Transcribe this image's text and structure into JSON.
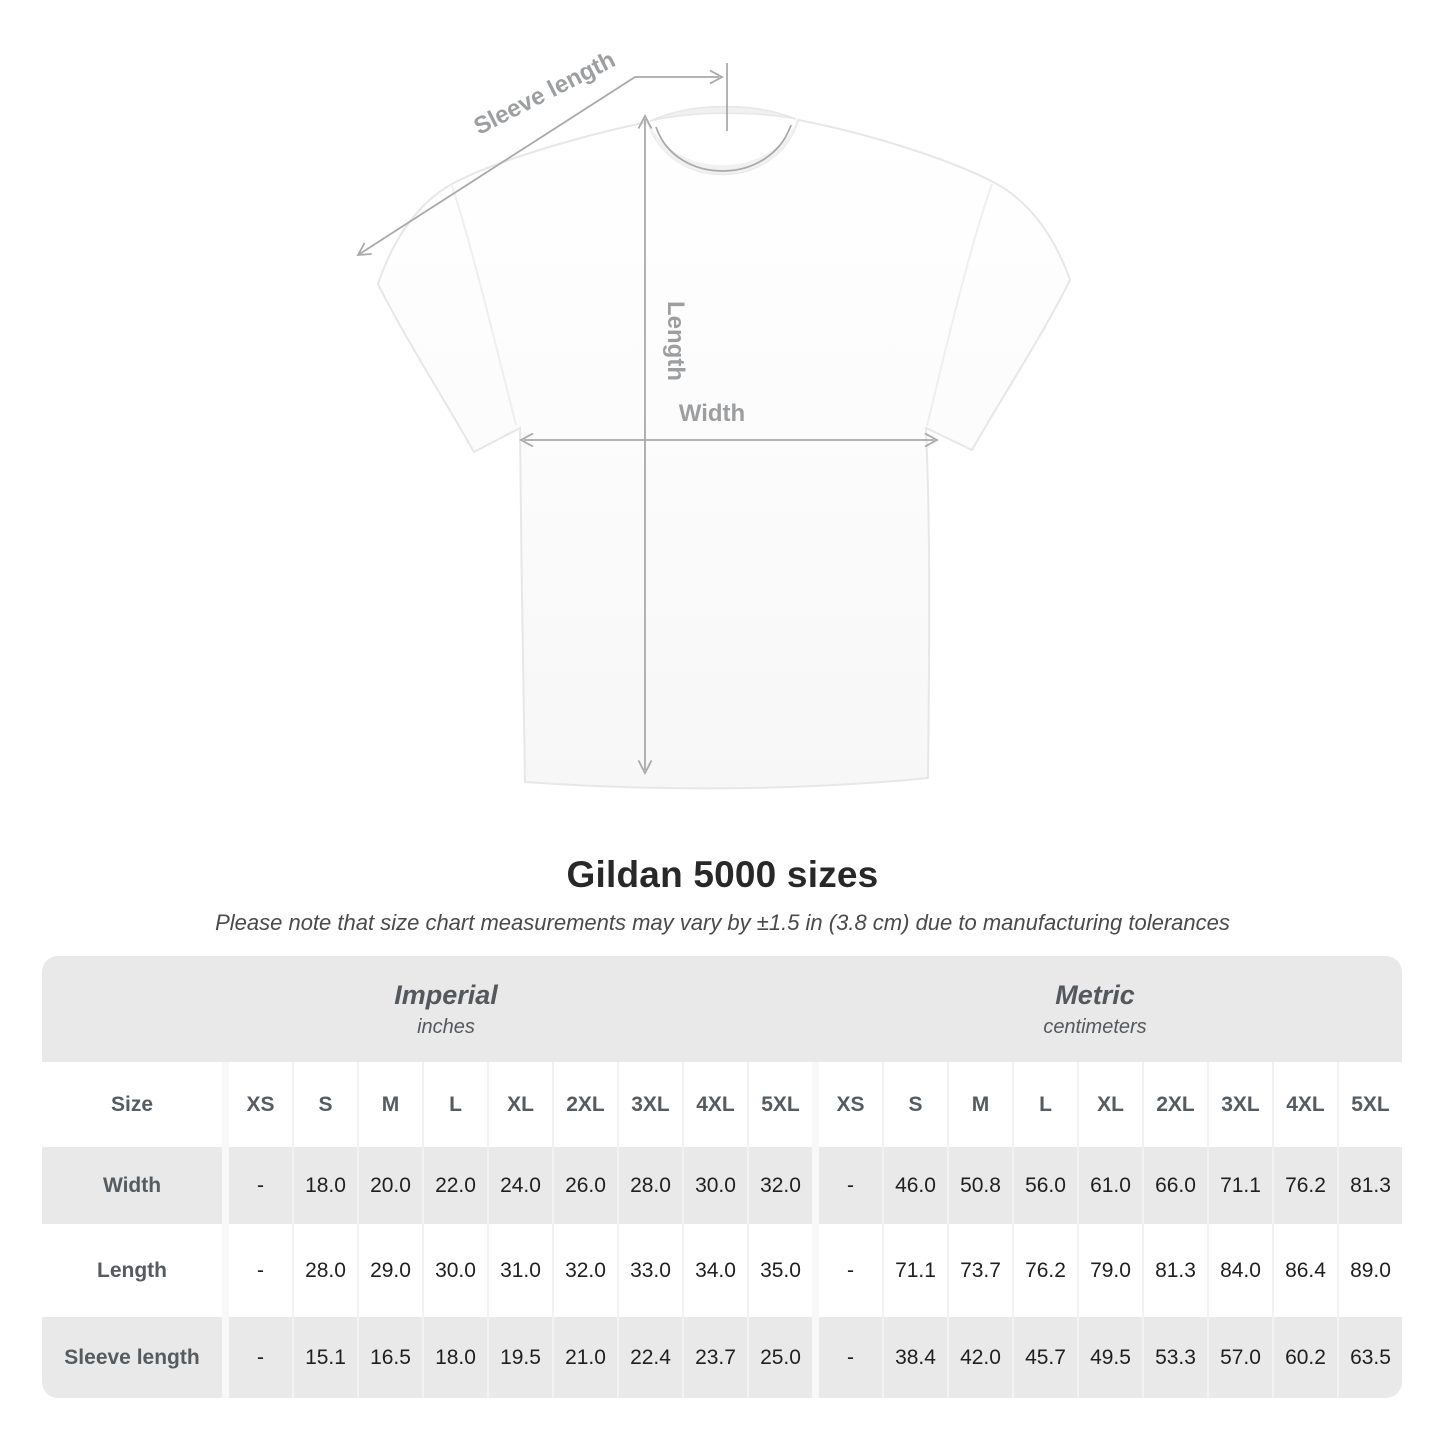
{
  "title": "Gildan 5000 sizes",
  "subtitle": "Please note that size chart measurements may vary by ±1.5 in (3.8 cm) due to manufacturing tolerances",
  "diagram": {
    "sleeve_length_label": "Sleeve length",
    "length_label": "Length",
    "width_label": "Width"
  },
  "size_table": {
    "groups": [
      {
        "label": "Imperial",
        "sublabel": "inches"
      },
      {
        "label": "Metric",
        "sublabel": "centimeters"
      }
    ],
    "corner_label": "Size",
    "sizes": [
      "XS",
      "S",
      "M",
      "L",
      "XL",
      "2XL",
      "3XL",
      "4XL",
      "5XL"
    ],
    "rows": [
      {
        "label": "Width",
        "imperial": [
          "-",
          "18.0",
          "20.0",
          "22.0",
          "24.0",
          "26.0",
          "28.0",
          "30.0",
          "32.0"
        ],
        "metric": [
          "-",
          "46.0",
          "50.8",
          "56.0",
          "61.0",
          "66.0",
          "71.1",
          "76.2",
          "81.3"
        ]
      },
      {
        "label": "Length",
        "imperial": [
          "-",
          "28.0",
          "29.0",
          "30.0",
          "31.0",
          "32.0",
          "33.0",
          "34.0",
          "35.0"
        ],
        "metric": [
          "-",
          "71.1",
          "73.7",
          "76.2",
          "79.0",
          "81.3",
          "84.0",
          "86.4",
          "89.0"
        ]
      },
      {
        "label": "Sleeve length",
        "imperial": [
          "-",
          "15.1",
          "16.5",
          "18.0",
          "19.5",
          "21.0",
          "22.4",
          "23.7",
          "25.0"
        ],
        "metric": [
          "-",
          "38.4",
          "42.0",
          "45.7",
          "49.5",
          "53.3",
          "57.0",
          "60.2",
          "63.5"
        ]
      }
    ]
  },
  "colors": {
    "table_band_gray": "#e9e9e9",
    "divider_thin": "#f2f2f2",
    "divider_wide": "#f8f8f8",
    "header_text": "#54585c",
    "value_text": "#1f1f1f",
    "dimension_gray": "#a7a9ab",
    "dimension_label_gray": "#9c9ea0"
  }
}
